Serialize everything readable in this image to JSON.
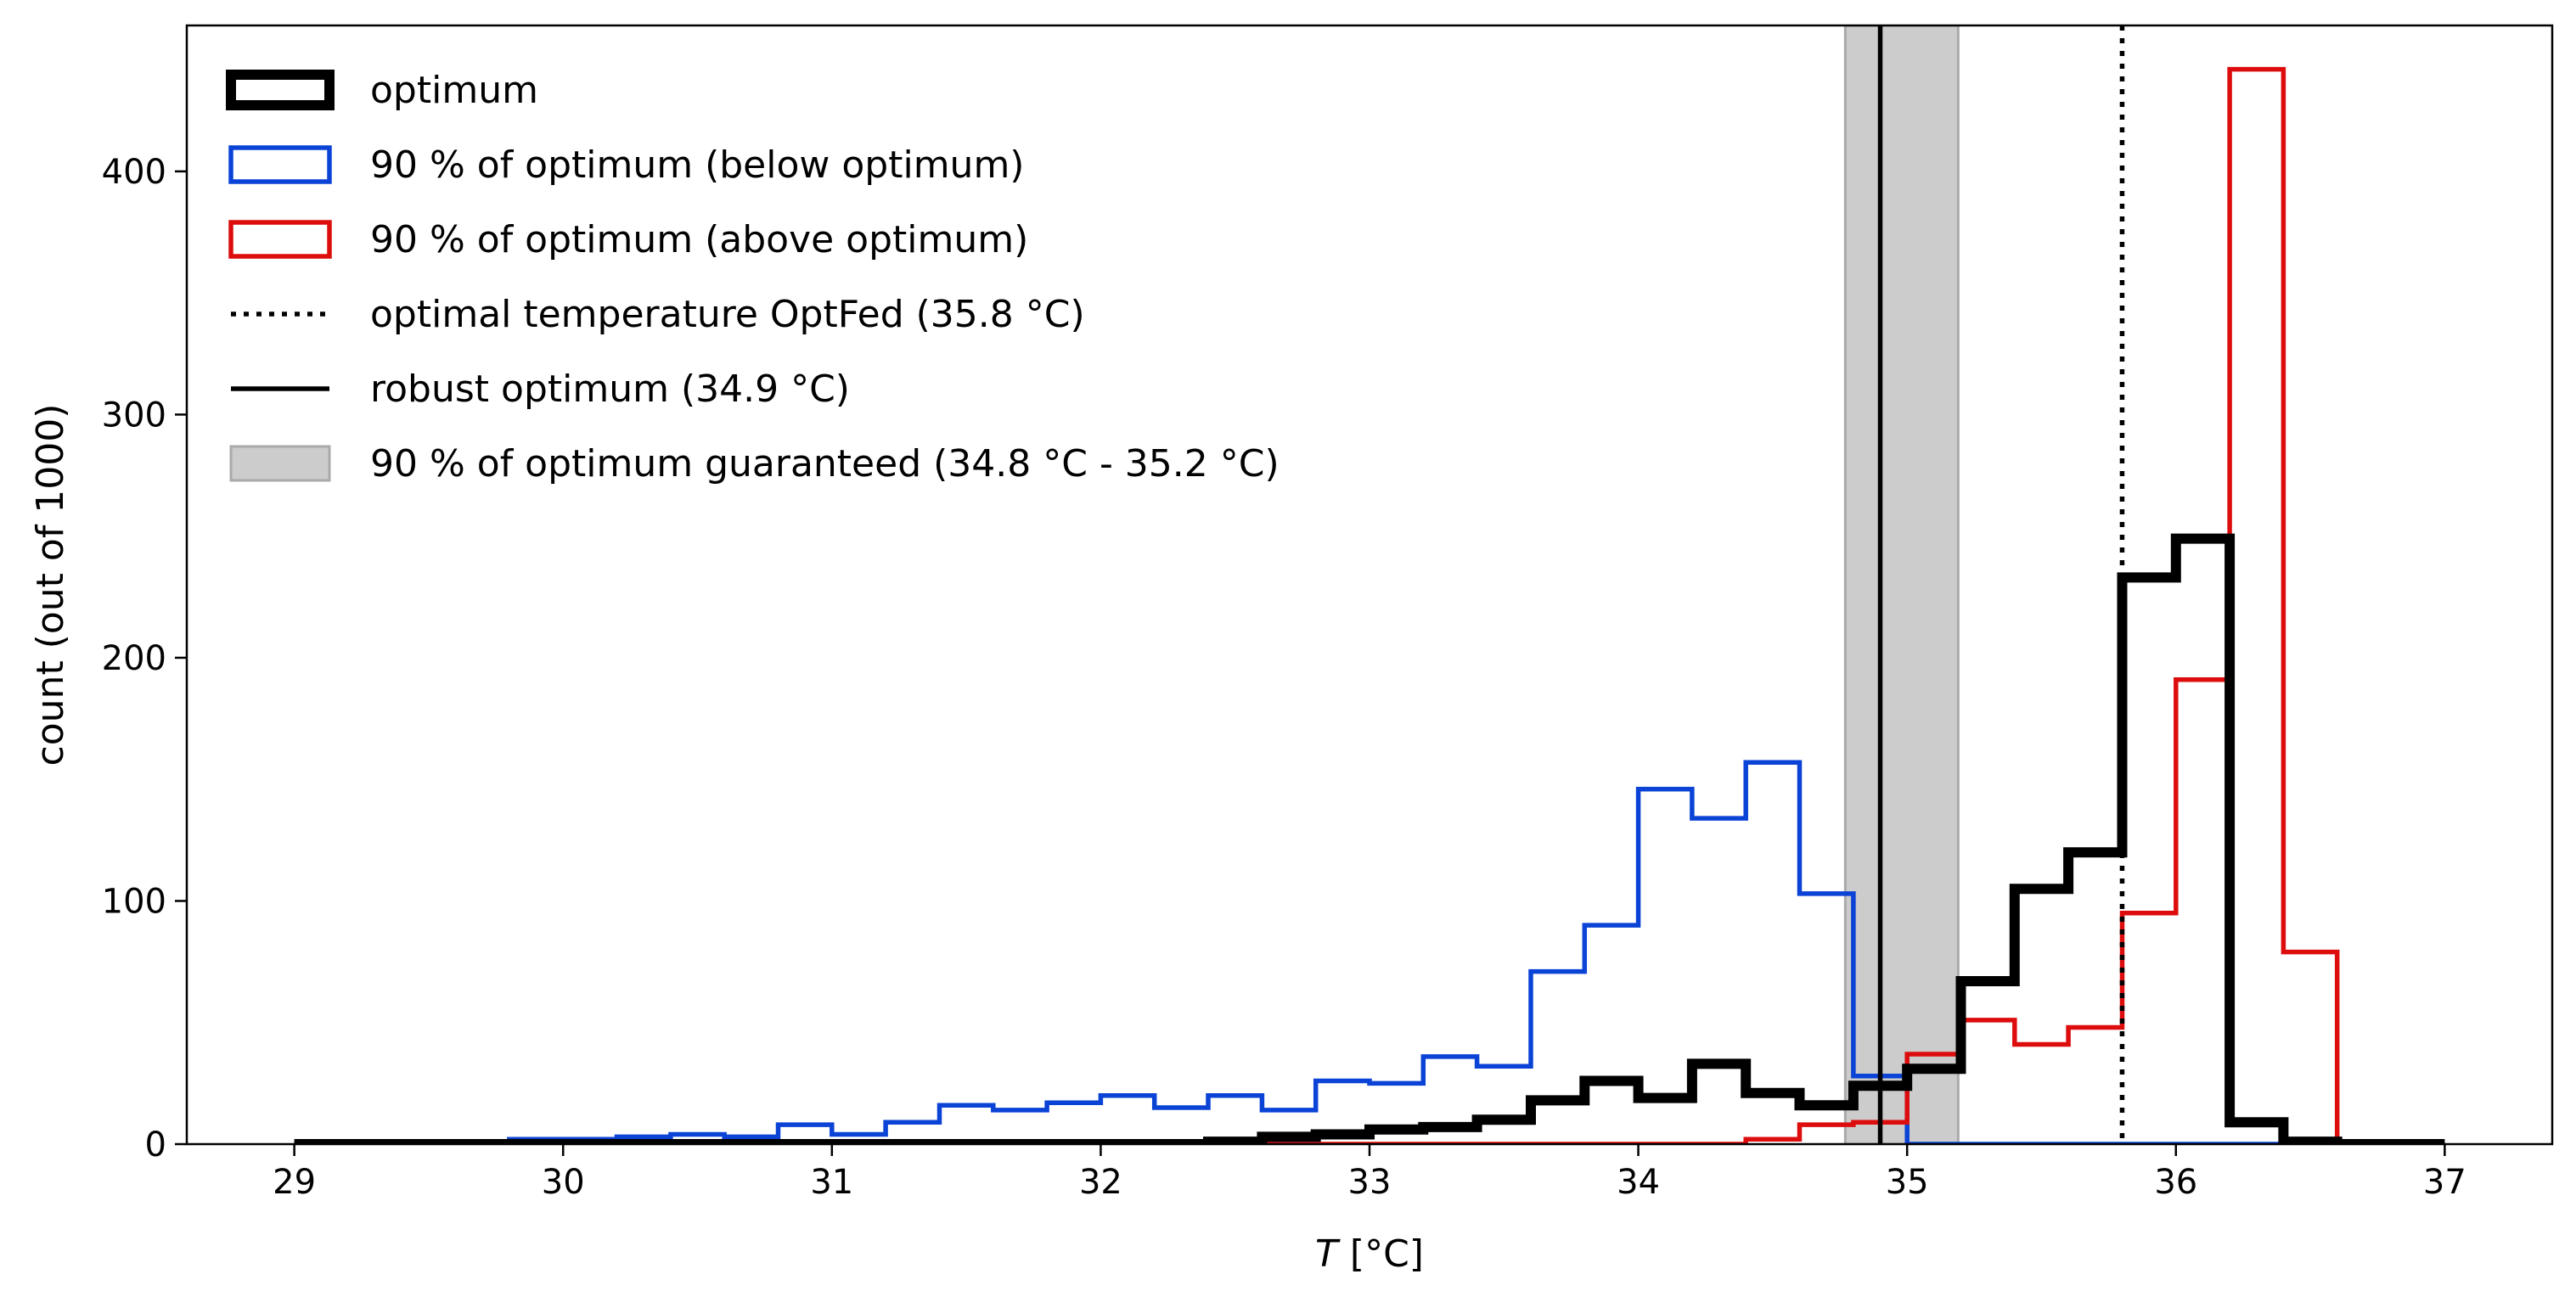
{
  "chart_data": {
    "type": "histogram",
    "xlabel": "T [°C]",
    "xlabel_var": "T",
    "xlabel_unit": " [°C]",
    "ylabel": "count (out of 1000)",
    "xlim": [
      28.6,
      37.4
    ],
    "ylim": [
      0,
      460
    ],
    "xticks": [
      29,
      30,
      31,
      32,
      33,
      34,
      35,
      36,
      37
    ],
    "yticks": [
      0,
      100,
      200,
      300,
      400
    ],
    "grid": false,
    "legend_position": "top-left",
    "bin_edges": [
      29.0,
      29.2,
      29.4,
      29.6,
      29.8,
      30.0,
      30.2,
      30.4,
      30.6,
      30.8,
      31.0,
      31.2,
      31.4,
      31.6,
      31.8,
      32.0,
      32.2,
      32.4,
      32.6,
      32.8,
      33.0,
      33.2,
      33.4,
      33.6,
      33.8,
      34.0,
      34.2,
      34.4,
      34.6,
      34.8,
      35.0,
      35.2,
      35.4,
      35.6,
      35.8,
      36.0,
      36.2,
      36.4,
      36.6,
      36.8,
      37.0
    ],
    "series": [
      {
        "name": "90 % of optimum (below optimum)",
        "style": "step-outline",
        "color": "#0a43d6",
        "values": [
          0,
          1,
          1,
          1,
          2,
          2,
          3,
          4,
          3,
          8,
          4,
          9,
          16,
          14,
          17,
          20,
          15,
          20,
          14,
          26,
          25,
          36,
          32,
          71,
          90,
          146,
          134,
          157,
          103,
          28,
          0,
          0,
          0,
          0,
          0,
          0,
          0,
          0,
          0,
          0
        ]
      },
      {
        "name": "90 % of optimum (above optimum)",
        "style": "step-outline",
        "color": "#dd0d0d",
        "values": [
          0,
          0,
          0,
          0,
          0,
          0,
          0,
          0,
          0,
          0,
          0,
          0,
          0,
          0,
          0,
          0,
          0,
          0,
          0,
          0,
          0,
          0,
          0,
          0,
          0,
          0,
          0,
          2,
          8,
          9,
          37,
          51,
          41,
          48,
          95,
          191,
          442,
          79,
          0,
          0
        ]
      },
      {
        "name": "optimum",
        "style": "step-outline-thick",
        "color": "#000000",
        "values": [
          0,
          0,
          0,
          0,
          0,
          0,
          0,
          0,
          0,
          0,
          0,
          0,
          0,
          0,
          0,
          0,
          0,
          1,
          3,
          4,
          6,
          7,
          10,
          18,
          26,
          19,
          33,
          21,
          16,
          24,
          31,
          67,
          105,
          120,
          233,
          249,
          9,
          1,
          0,
          0
        ]
      }
    ],
    "reference_lines": [
      {
        "name": "optimal temperature OptFed (35.8 °C)",
        "x": 35.8,
        "style": "dotted",
        "color": "#000000"
      },
      {
        "name": "robust optimum (34.9 °C)",
        "x": 34.9,
        "style": "solid",
        "color": "#000000"
      }
    ],
    "shaded_band": {
      "name": "90 % of optimum guaranteed (34.8 °C - 35.2 °C)",
      "x0": 34.77,
      "x1": 35.19,
      "color": "#cccccc",
      "edge_color": "#aaaaaa"
    },
    "legend": [
      {
        "label": "optimum",
        "kind": "thick-box",
        "color": "#000000"
      },
      {
        "label": "90 % of optimum (below optimum)",
        "kind": "box",
        "color": "#0a43d6"
      },
      {
        "label": "90 % of optimum (above optimum)",
        "kind": "box",
        "color": "#dd0d0d"
      },
      {
        "label": "optimal temperature OptFed (35.8 °C)",
        "kind": "dotted-line",
        "color": "#000000"
      },
      {
        "label": "robust optimum (34.9 °C)",
        "kind": "solid-line",
        "color": "#000000"
      },
      {
        "label": "90 % of optimum guaranteed (34.8 °C - 35.2 °C)",
        "kind": "filled-box",
        "color": "#cccccc"
      }
    ]
  }
}
